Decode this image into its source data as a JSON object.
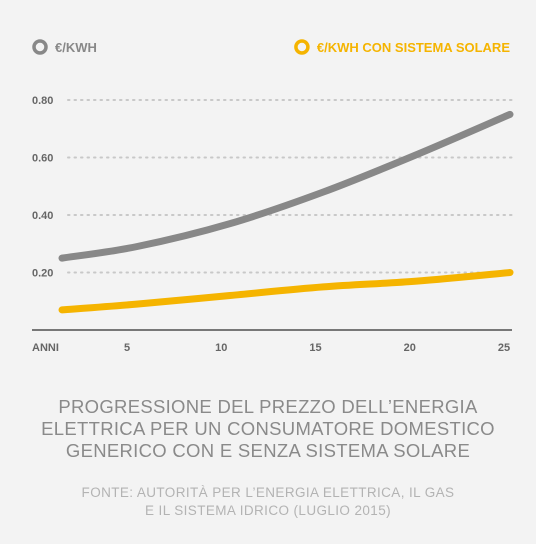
{
  "chart_data": {
    "type": "line",
    "xlabel": "ANNI",
    "ylabel": "",
    "x": [
      1,
      5,
      10,
      15,
      20,
      25
    ],
    "x_ticks": [
      "5",
      "10",
      "15",
      "20",
      "25"
    ],
    "y_ticks": [
      "0.20",
      "0.40",
      "0.60",
      "0.80"
    ],
    "xlim": [
      0,
      25
    ],
    "ylim": [
      0,
      0.8
    ],
    "grid": "horizontal dotted",
    "legend_position": "top",
    "series": [
      {
        "name": "€/KWH",
        "color": "#888888",
        "values": [
          0.25,
          0.29,
          0.37,
          0.48,
          0.61,
          0.75
        ]
      },
      {
        "name": "€/KWH CON SISTEMA SOLARE",
        "color": "#f5b400",
        "values": [
          0.07,
          0.09,
          0.12,
          0.15,
          0.17,
          0.2
        ]
      }
    ]
  },
  "caption": {
    "title_lines": [
      "PROGRESSIONE DEL PREZZO DELL’ENERGIA",
      "ELETTRICA PER UN CONSUMATORE DOMESTICO",
      "GENERICO CON E SENZA SISTEMA SOLARE"
    ],
    "source_lines": [
      "FONTE: AUTORITÀ PER L’ENERGIA ELETTRICA, IL GAS",
      "E IL SISTEMA IDRICO (LUGLIO 2015)"
    ]
  },
  "colors": {
    "axis_text": "#666666",
    "grid": "#c8c8c8",
    "axis_line": "#777777"
  }
}
